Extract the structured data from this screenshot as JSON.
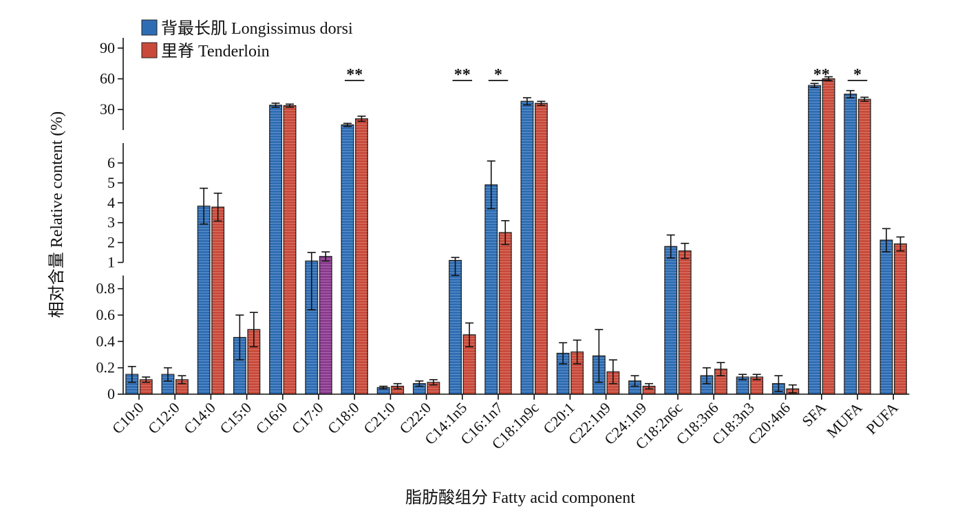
{
  "chart_data": {
    "type": "bar",
    "xlabel": "脂肪酸组分 Fatty acid component",
    "ylabel": "相对含量 Relative content (%)",
    "legend_position": "top-left",
    "broken_y_axis": true,
    "y_segments": [
      {
        "ylim": [
          0,
          0.9
        ],
        "ticks": [
          "0",
          "0.2",
          "0.4",
          "0.6",
          "0.8"
        ]
      },
      {
        "ylim": [
          1,
          7
        ],
        "ticks": [
          "1",
          "2",
          "3",
          "4",
          "5",
          "6"
        ]
      },
      {
        "ylim": [
          10,
          100
        ],
        "ticks": [
          "30",
          "60",
          "90"
        ]
      }
    ],
    "categories": [
      "C10:0",
      "C12:0",
      "C14:0",
      "C15:0",
      "C16:0",
      "C17:0",
      "C18:0",
      "C21:0",
      "C22:0",
      "C14:1n5",
      "C16:1n7",
      "C18:1n9c",
      "C20:1",
      "C22:1n9",
      "C24:1n9",
      "C18:2n6c",
      "C18:3n6",
      "C18:3n3",
      "C20:4n6",
      "SFA",
      "MUFA",
      "PUFA"
    ],
    "series": [
      {
        "name": "背最长肌 Longissimus dorsi",
        "color": "#2E6DB4",
        "values": [
          0.15,
          0.15,
          3.83,
          0.43,
          34.2,
          1.07,
          15.0,
          0.05,
          0.08,
          1.1,
          4.9,
          38.0,
          0.31,
          0.29,
          0.1,
          1.8,
          0.14,
          0.13,
          0.08,
          53.5,
          45.0,
          2.12
        ],
        "errors": [
          0.06,
          0.05,
          0.9,
          0.17,
          2.0,
          0.43,
          1.5,
          0.01,
          0.02,
          0.15,
          1.2,
          3.5,
          0.08,
          0.2,
          0.04,
          0.58,
          0.06,
          0.02,
          0.06,
          2.0,
          3.5,
          0.58
        ]
      },
      {
        "name": "里脊 Tenderloin",
        "color": "#C94A3A",
        "values": [
          0.11,
          0.11,
          3.78,
          0.49,
          33.8,
          1.3,
          21.0,
          0.06,
          0.09,
          0.45,
          2.5,
          36.0,
          0.32,
          0.17,
          0.06,
          1.58,
          0.19,
          0.13,
          0.04,
          60.0,
          40.0,
          1.93
        ],
        "errors": [
          0.02,
          0.03,
          0.7,
          0.13,
          1.5,
          0.23,
          2.5,
          0.02,
          0.02,
          0.09,
          0.6,
          2.0,
          0.09,
          0.09,
          0.02,
          0.38,
          0.05,
          0.02,
          0.03,
          2.0,
          2.0,
          0.35
        ]
      }
    ],
    "special_bar_colors": [
      {
        "category": "C17:0",
        "series": 1,
        "color": "#8B3A8F"
      }
    ],
    "significance": [
      {
        "category": "C18:0",
        "label": "**"
      },
      {
        "category": "C14:1n5",
        "label": "**"
      },
      {
        "category": "C16:1n7",
        "label": "*"
      },
      {
        "category": "SFA",
        "label": "**"
      },
      {
        "category": "MUFA",
        "label": "*"
      }
    ]
  }
}
